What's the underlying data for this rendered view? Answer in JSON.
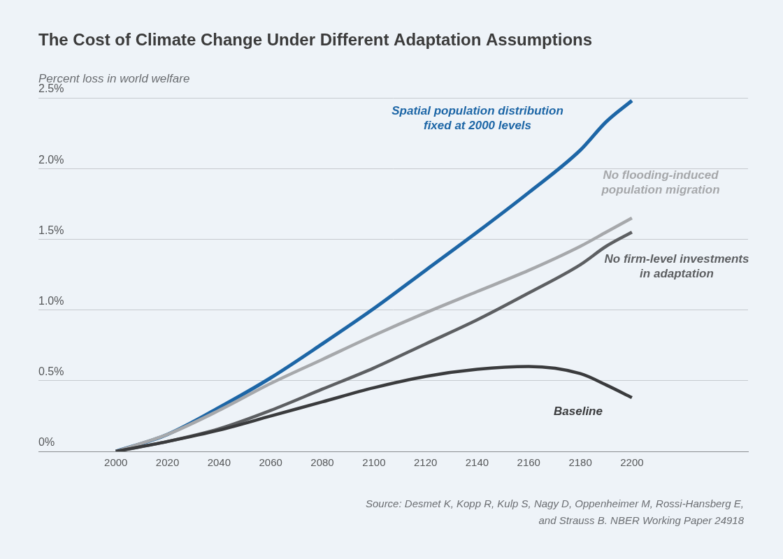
{
  "chart_data": {
    "type": "line",
    "title": "The Cost of Climate Change Under Different Adaptation Assumptions",
    "y_label": "Percent loss in world welfare",
    "source": [
      "Source: Desmet K, Kopp R, Kulp S, Nagy D, Oppenheimer M, Rossi-Hansberg E,",
      "and Strauss B. NBER Working Paper 24918"
    ],
    "x": [
      2000,
      2020,
      2040,
      2060,
      2080,
      2100,
      2120,
      2140,
      2160,
      2180,
      2190,
      2200
    ],
    "xlim": [
      1970,
      2245
    ],
    "xticks": [
      2000,
      2020,
      2040,
      2060,
      2080,
      2100,
      2120,
      2140,
      2160,
      2180,
      2200
    ],
    "ylim": [
      0,
      2.5
    ],
    "yticks": [
      {
        "value": 0,
        "label": "0%"
      },
      {
        "value": 0.5,
        "label": "0.5%"
      },
      {
        "value": 1,
        "label": "1.0%"
      },
      {
        "value": 1.5,
        "label": "1.5%"
      },
      {
        "value": 2,
        "label": "2.0%"
      },
      {
        "value": 2.5,
        "label": "2.5%"
      }
    ],
    "grid": true,
    "series": [
      {
        "name": "Baseline",
        "color": "#3a3b3d",
        "values": [
          0,
          0.07,
          0.15,
          0.25,
          0.35,
          0.45,
          0.53,
          0.58,
          0.6,
          0.55,
          0.47,
          0.38
        ]
      },
      {
        "name": "No firm-level investments in adaptation",
        "color": "#5d5f62",
        "values": [
          0,
          0.07,
          0.16,
          0.29,
          0.44,
          0.59,
          0.76,
          0.93,
          1.12,
          1.32,
          1.45,
          1.55
        ]
      },
      {
        "name": "No flooding-induced population migration",
        "color": "#a6a8ab",
        "values": [
          0,
          0.12,
          0.29,
          0.48,
          0.65,
          0.82,
          0.98,
          1.13,
          1.28,
          1.45,
          1.55,
          1.65
        ]
      },
      {
        "name": "Spatial population distribution fixed at 2000 levels",
        "color": "#1d66a6",
        "values": [
          0,
          0.12,
          0.31,
          0.52,
          0.76,
          1.01,
          1.28,
          1.55,
          1.83,
          2.13,
          2.33,
          2.48
        ]
      }
    ]
  }
}
